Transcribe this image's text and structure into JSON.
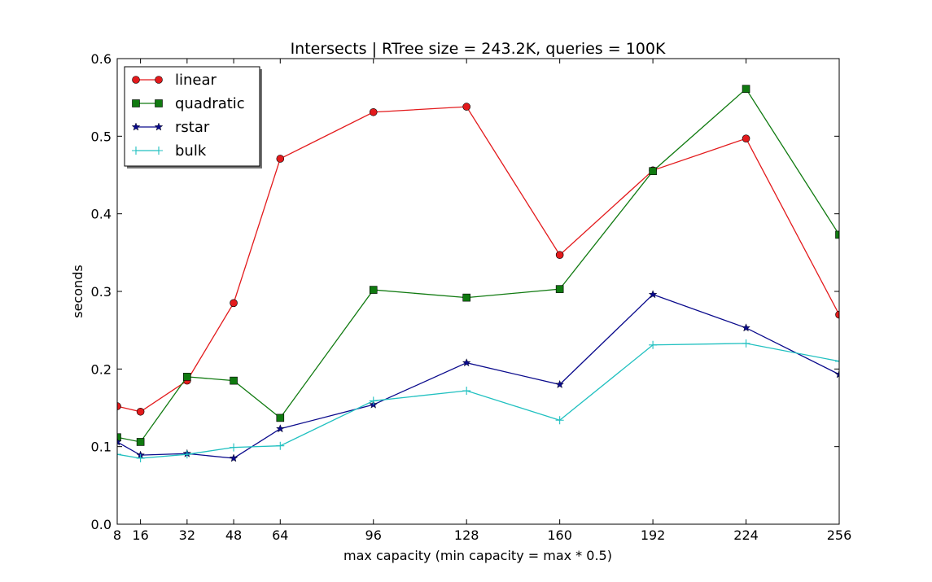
{
  "chart_data": {
    "type": "line",
    "title": "Intersects | RTree size = 243.2K, queries = 100K",
    "xlabel": "max capacity (min capacity = max * 0.5)",
    "ylabel": "seconds",
    "x": [
      8,
      16,
      32,
      48,
      64,
      96,
      128,
      160,
      192,
      224,
      256
    ],
    "xticks": [
      "8",
      "16",
      "32",
      "48",
      "64",
      "96",
      "128",
      "160",
      "192",
      "224",
      "256"
    ],
    "xlim": [
      8,
      256
    ],
    "ylim": [
      0.0,
      0.6
    ],
    "yticks": [
      "0.0",
      "0.1",
      "0.2",
      "0.3",
      "0.4",
      "0.5",
      "0.6"
    ],
    "grid": false,
    "legend_position": "top-left",
    "series": [
      {
        "name": "linear",
        "color": "#e31a1c",
        "marker": "circle",
        "values": [
          0.152,
          0.145,
          0.185,
          0.285,
          0.471,
          0.531,
          0.538,
          0.347,
          0.456,
          0.497,
          0.27
        ]
      },
      {
        "name": "quadratic",
        "color": "#107a10",
        "marker": "square",
        "values": [
          0.112,
          0.106,
          0.19,
          0.185,
          0.137,
          0.302,
          0.292,
          0.303,
          0.455,
          0.561,
          0.373
        ]
      },
      {
        "name": "rstar",
        "color": "#0a0a8c",
        "marker": "star",
        "values": [
          0.106,
          0.089,
          0.091,
          0.085,
          0.123,
          0.154,
          0.208,
          0.18,
          0.296,
          0.253,
          0.193
        ]
      },
      {
        "name": "bulk",
        "color": "#20c0c0",
        "marker": "plus",
        "values": [
          0.09,
          0.085,
          0.09,
          0.099,
          0.101,
          0.159,
          0.172,
          0.134,
          0.231,
          0.233,
          0.21
        ]
      }
    ]
  }
}
